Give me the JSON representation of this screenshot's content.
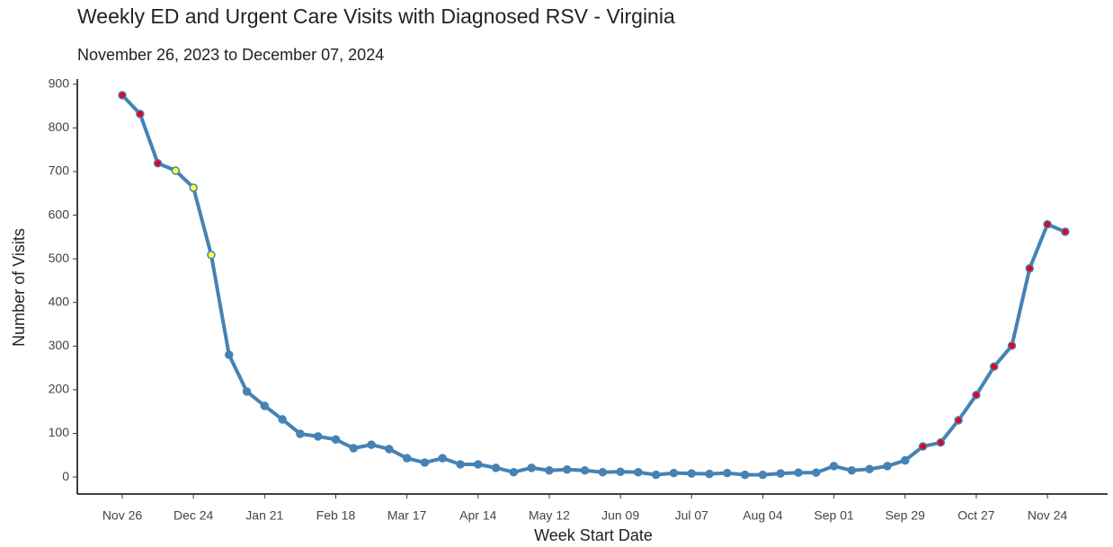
{
  "chart_data": {
    "type": "line",
    "title": "Weekly ED and Urgent Care Visits with Diagnosed RSV - Virginia",
    "subtitle": "November 26, 2023 to December 07, 2024",
    "x_label": "Week Start Date",
    "y_label": "Number of Visits",
    "categories": [
      "Nov 26",
      null,
      null,
      null,
      "Dec 24",
      null,
      null,
      null,
      "Jan 21",
      null,
      null,
      null,
      "Feb 18",
      null,
      null,
      null,
      "Mar 17",
      null,
      null,
      null,
      "Apr 14",
      null,
      null,
      null,
      "May 12",
      null,
      null,
      null,
      "Jun 09",
      null,
      null,
      null,
      "Jul 07",
      null,
      null,
      null,
      "Aug 04",
      null,
      null,
      null,
      "Sep 01",
      null,
      null,
      null,
      "Sep 29",
      null,
      null,
      null,
      "Oct 27",
      null,
      null,
      null,
      "Nov 24",
      null
    ],
    "series": [
      {
        "color": "#4682b4",
        "values": [
          875,
          832,
          719,
          702,
          663,
          509,
          280,
          196,
          163,
          132,
          99,
          93,
          86,
          66,
          74,
          64,
          43,
          33,
          43,
          29,
          29,
          21,
          11,
          21,
          15,
          17,
          15,
          11,
          12,
          11,
          5,
          9,
          8,
          7,
          9,
          5,
          5,
          8,
          10,
          10,
          25,
          15,
          18,
          25,
          38,
          70,
          79,
          130,
          188,
          253,
          301,
          478,
          579,
          562
        ],
        "point_colors": [
          "#e8001c",
          "#e8001c",
          "#e8001c",
          "#ffff33",
          "#ffff33",
          "#ffff33",
          "#4682b4",
          "#4682b4",
          "#4682b4",
          "#4682b4",
          "#4682b4",
          "#4682b4",
          "#4682b4",
          "#4682b4",
          "#4682b4",
          "#4682b4",
          "#4682b4",
          "#4682b4",
          "#4682b4",
          "#4682b4",
          "#4682b4",
          "#4682b4",
          "#4682b4",
          "#4682b4",
          "#4682b4",
          "#4682b4",
          "#4682b4",
          "#4682b4",
          "#4682b4",
          "#4682b4",
          "#4682b4",
          "#4682b4",
          "#4682b4",
          "#4682b4",
          "#4682b4",
          "#4682b4",
          "#4682b4",
          "#4682b4",
          "#4682b4",
          "#4682b4",
          "#4682b4",
          "#4682b4",
          "#4682b4",
          "#4682b4",
          "#4682b4",
          "#e8001c",
          "#e8001c",
          "#e8001c",
          "#e8001c",
          "#e8001c",
          "#e8001c",
          "#e8001c",
          "#e8001c",
          "#e8001c"
        ]
      }
    ],
    "ylim": [
      -39,
      912
    ],
    "yticks": [
      0,
      100,
      200,
      300,
      400,
      500,
      600,
      700,
      800,
      900
    ],
    "grid": false
  }
}
